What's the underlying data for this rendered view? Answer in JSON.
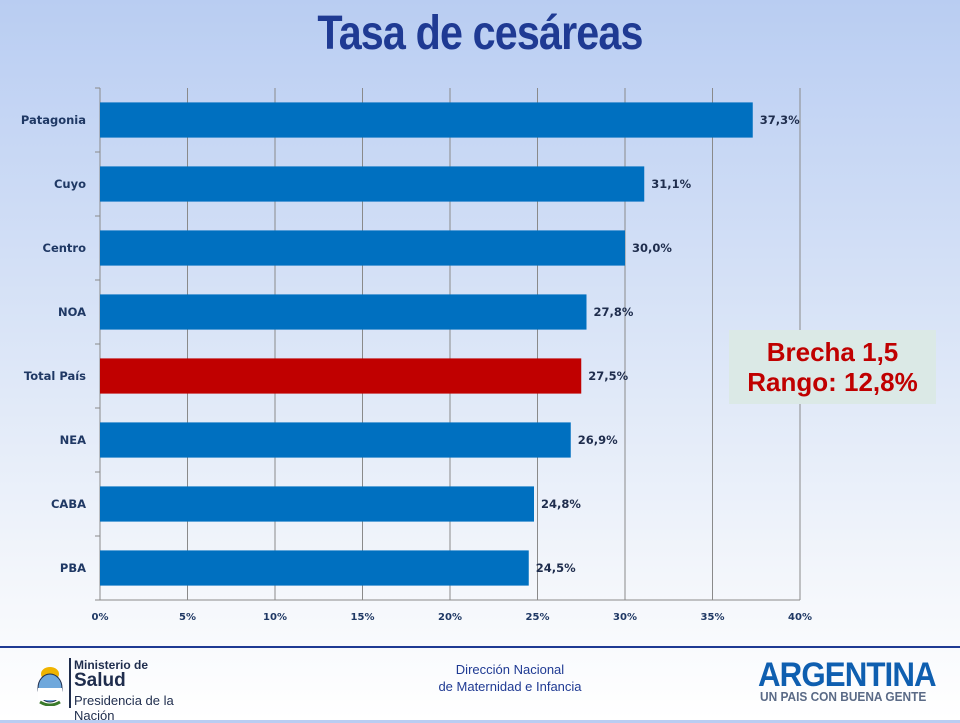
{
  "title": "Tasa de cesáreas",
  "chart_data": {
    "type": "bar",
    "orientation": "horizontal",
    "title": "Tasa de cesáreas",
    "categories": [
      "Patagonia",
      "Cuyo",
      "Centro",
      "NOA",
      "Total País",
      "NEA",
      "CABA",
      "PBA"
    ],
    "values": [
      37.3,
      31.1,
      30.0,
      27.8,
      27.5,
      26.9,
      24.8,
      24.5
    ],
    "value_labels": [
      "37,3%",
      "31,1%",
      "30,0%",
      "27,8%",
      "27,5%",
      "26,9%",
      "24,8%",
      "24,5%"
    ],
    "xlim": [
      0,
      40
    ],
    "xticks": [
      0,
      5,
      10,
      15,
      20,
      25,
      30,
      35,
      40
    ],
    "xtick_labels": [
      "0%",
      "5%",
      "10%",
      "15%",
      "20%",
      "25%",
      "30%",
      "35%",
      "40%"
    ],
    "grid": true,
    "bar_color": "#0070c0",
    "highlight_category": "Total País",
    "highlight_color": "#c00000"
  },
  "callout": {
    "line1": "Brecha 1,5",
    "line2": "Rango: 12,8%"
  },
  "footer": {
    "center_line1": "Dirección Nacional",
    "center_line2": "de Maternidad e Infancia",
    "ministerio_line1": "Ministerio de",
    "ministerio_line2": "Salud",
    "ministerio_line3": "Presidencia de la Nación",
    "argentina_logo": "ARGENTINA",
    "argentina_tagline": "UN PAIS CON BUENA GENTE",
    "shield_icon": "coat-of-arms-icon"
  }
}
